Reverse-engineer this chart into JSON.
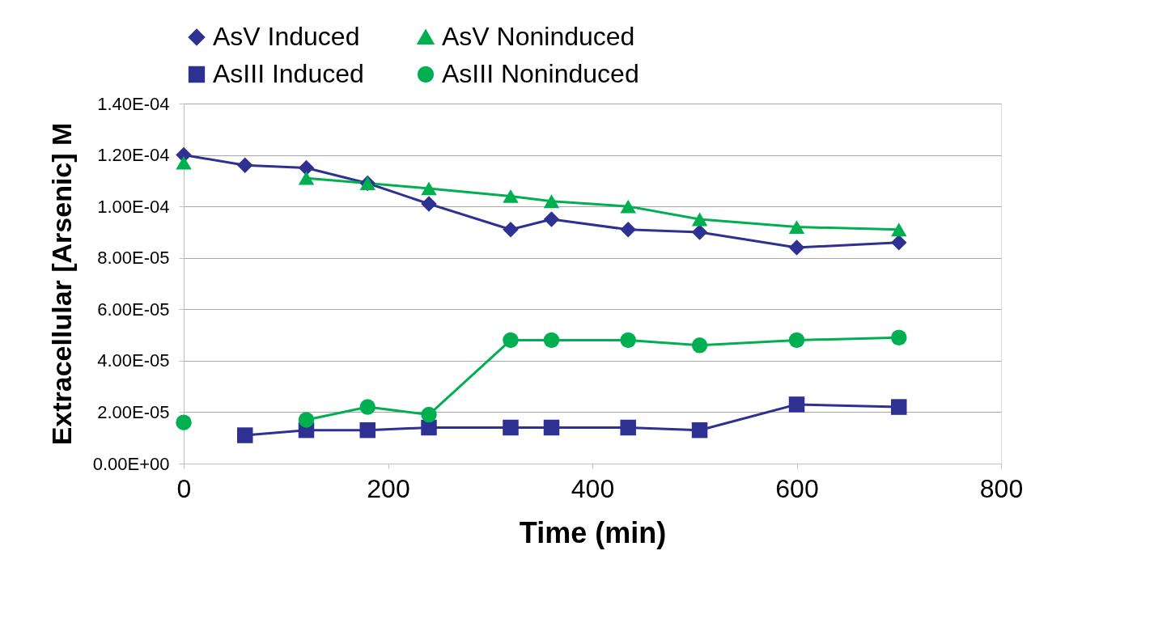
{
  "chart_data": {
    "type": "line",
    "xlabel": "Time (min)",
    "ylabel": "Extracellular [Arsenic] M",
    "x": [
      0,
      60,
      120,
      180,
      240,
      320,
      360,
      435,
      505,
      600,
      700
    ],
    "series": [
      {
        "name": "AsV Induced",
        "color": "#2e3192",
        "marker": "diamond",
        "values": [
          0.00012,
          0.000116,
          0.000115,
          0.000109,
          0.000101,
          9.1e-05,
          9.5e-05,
          9.1e-05,
          9e-05,
          8.4e-05,
          8.6e-05
        ]
      },
      {
        "name": "AsV Noninduced",
        "color": "#00b050",
        "marker": "triangle",
        "values": [
          0.000117,
          null,
          0.000111,
          0.000109,
          0.000107,
          0.000104,
          0.000102,
          0.0001,
          9.5e-05,
          9.2e-05,
          9.1e-05
        ]
      },
      {
        "name": "AsIII Induced",
        "color": "#2e3192",
        "marker": "square",
        "values": [
          null,
          1.1e-05,
          1.3e-05,
          1.3e-05,
          1.4e-05,
          1.4e-05,
          1.4e-05,
          1.4e-05,
          1.3e-05,
          2.3e-05,
          2.2e-05
        ]
      },
      {
        "name": "AsIII Noninduced",
        "color": "#00b050",
        "marker": "circle",
        "values": [
          1.6e-05,
          null,
          1.7e-05,
          2.2e-05,
          1.9e-05,
          4.8e-05,
          4.8e-05,
          4.8e-05,
          4.6e-05,
          4.8e-05,
          4.9e-05
        ]
      }
    ],
    "xlim": [
      0,
      800
    ],
    "xticks": [
      0,
      200,
      400,
      600,
      800
    ],
    "ylim": [
      0,
      0.00014
    ],
    "yticks": [
      {
        "value": 0,
        "label": "0.00E+00"
      },
      {
        "value": 2e-05,
        "label": "2.00E-05"
      },
      {
        "value": 4e-05,
        "label": "4.00E-05"
      },
      {
        "value": 6e-05,
        "label": "6.00E-05"
      },
      {
        "value": 8e-05,
        "label": "8.00E-05"
      },
      {
        "value": 0.0001,
        "label": "1.00E-04"
      },
      {
        "value": 0.00012,
        "label": "1.20E-04"
      },
      {
        "value": 0.00014,
        "label": "1.40E-04"
      }
    ],
    "grid": "y",
    "legend": "top",
    "line_style": "solid"
  }
}
